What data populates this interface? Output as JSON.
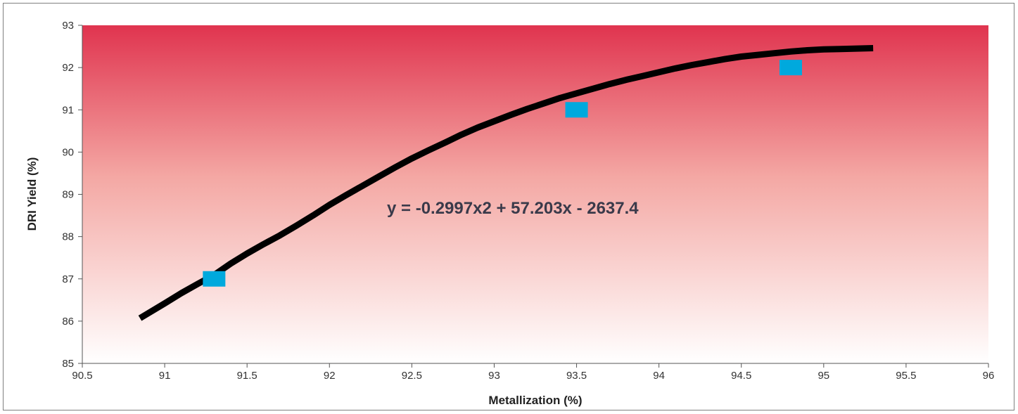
{
  "chart_data": {
    "type": "scatter",
    "title": "",
    "xlabel": "Metallization (%)",
    "ylabel": "DRI Yield (%)",
    "xlim": [
      90.5,
      96
    ],
    "ylim": [
      85,
      93
    ],
    "x_ticks": [
      "90.5",
      "91",
      "91.5",
      "92",
      "92.5",
      "93",
      "93.5",
      "94",
      "94.5",
      "95",
      "95.5",
      "96"
    ],
    "y_ticks": [
      "85",
      "86",
      "87",
      "88",
      "89",
      "90",
      "91",
      "92",
      "93"
    ],
    "grid": false,
    "legend": "none",
    "background_gradient": {
      "top": "#e0344f",
      "bottom": "#ffffff"
    },
    "series": [
      {
        "kind": "points",
        "marker": "square",
        "color": "#00a9dd",
        "x": [
          91.3,
          93.5,
          94.8
        ],
        "y": [
          87.0,
          91.0,
          92.0
        ]
      },
      {
        "kind": "trendline",
        "color": "#000000",
        "x": [
          90.85,
          91.0,
          91.1,
          91.2,
          91.3,
          91.4,
          91.5,
          91.6,
          91.7,
          91.8,
          91.9,
          92.0,
          92.1,
          92.2,
          92.3,
          92.4,
          92.5,
          92.6,
          92.7,
          92.8,
          92.9,
          93.0,
          93.1,
          93.2,
          93.3,
          93.4,
          93.5,
          93.6,
          93.7,
          93.8,
          93.9,
          94.0,
          94.1,
          94.2,
          94.3,
          94.4,
          94.5,
          94.6,
          94.7,
          94.8,
          94.9,
          95.0,
          95.1,
          95.2,
          95.3
        ],
        "y": [
          86.07,
          86.42,
          86.66,
          86.88,
          87.09,
          87.36,
          87.6,
          87.82,
          88.03,
          88.26,
          88.5,
          88.75,
          88.98,
          89.2,
          89.42,
          89.64,
          89.85,
          90.04,
          90.22,
          90.41,
          90.58,
          90.73,
          90.88,
          91.02,
          91.15,
          91.28,
          91.39,
          91.5,
          91.61,
          91.71,
          91.8,
          91.89,
          91.98,
          92.06,
          92.13,
          92.2,
          92.26,
          92.3,
          92.34,
          92.38,
          92.41,
          92.43,
          92.44,
          92.45,
          92.46
        ]
      }
    ],
    "annotations": [
      {
        "text": "y = -0.2997x2 + 57.203x - 2637.4"
      }
    ]
  }
}
